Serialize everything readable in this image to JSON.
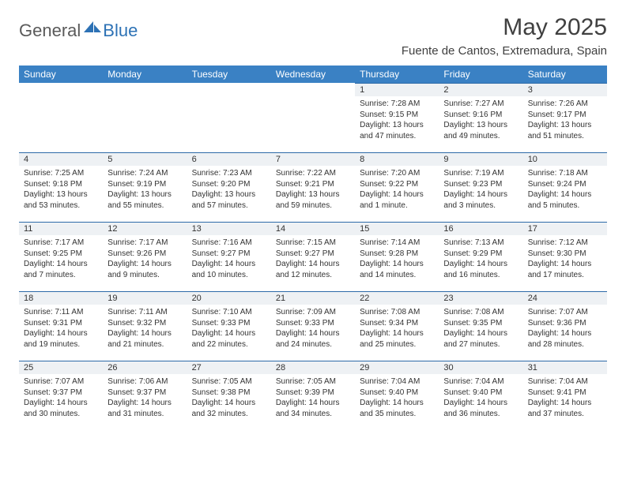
{
  "logo": {
    "general": "General",
    "blue": "Blue"
  },
  "title": "May 2025",
  "location": "Fuente de Cantos, Extremadura, Spain",
  "colors": {
    "header_bg": "#3a81c4",
    "header_text": "#ffffff",
    "daynum_bg": "#eef1f4",
    "weekline": "#2d6aa8",
    "text": "#333333",
    "logo_gray": "#5a5a5a",
    "logo_blue": "#2d72b5",
    "background": "#ffffff"
  },
  "weekdays": [
    "Sunday",
    "Monday",
    "Tuesday",
    "Wednesday",
    "Thursday",
    "Friday",
    "Saturday"
  ],
  "weeks": [
    [
      null,
      null,
      null,
      null,
      {
        "n": "1",
        "sr": "7:28 AM",
        "ss": "9:15 PM",
        "dl": "13 hours and 47 minutes."
      },
      {
        "n": "2",
        "sr": "7:27 AM",
        "ss": "9:16 PM",
        "dl": "13 hours and 49 minutes."
      },
      {
        "n": "3",
        "sr": "7:26 AM",
        "ss": "9:17 PM",
        "dl": "13 hours and 51 minutes."
      }
    ],
    [
      {
        "n": "4",
        "sr": "7:25 AM",
        "ss": "9:18 PM",
        "dl": "13 hours and 53 minutes."
      },
      {
        "n": "5",
        "sr": "7:24 AM",
        "ss": "9:19 PM",
        "dl": "13 hours and 55 minutes."
      },
      {
        "n": "6",
        "sr": "7:23 AM",
        "ss": "9:20 PM",
        "dl": "13 hours and 57 minutes."
      },
      {
        "n": "7",
        "sr": "7:22 AM",
        "ss": "9:21 PM",
        "dl": "13 hours and 59 minutes."
      },
      {
        "n": "8",
        "sr": "7:20 AM",
        "ss": "9:22 PM",
        "dl": "14 hours and 1 minute."
      },
      {
        "n": "9",
        "sr": "7:19 AM",
        "ss": "9:23 PM",
        "dl": "14 hours and 3 minutes."
      },
      {
        "n": "10",
        "sr": "7:18 AM",
        "ss": "9:24 PM",
        "dl": "14 hours and 5 minutes."
      }
    ],
    [
      {
        "n": "11",
        "sr": "7:17 AM",
        "ss": "9:25 PM",
        "dl": "14 hours and 7 minutes."
      },
      {
        "n": "12",
        "sr": "7:17 AM",
        "ss": "9:26 PM",
        "dl": "14 hours and 9 minutes."
      },
      {
        "n": "13",
        "sr": "7:16 AM",
        "ss": "9:27 PM",
        "dl": "14 hours and 10 minutes."
      },
      {
        "n": "14",
        "sr": "7:15 AM",
        "ss": "9:27 PM",
        "dl": "14 hours and 12 minutes."
      },
      {
        "n": "15",
        "sr": "7:14 AM",
        "ss": "9:28 PM",
        "dl": "14 hours and 14 minutes."
      },
      {
        "n": "16",
        "sr": "7:13 AM",
        "ss": "9:29 PM",
        "dl": "14 hours and 16 minutes."
      },
      {
        "n": "17",
        "sr": "7:12 AM",
        "ss": "9:30 PM",
        "dl": "14 hours and 17 minutes."
      }
    ],
    [
      {
        "n": "18",
        "sr": "7:11 AM",
        "ss": "9:31 PM",
        "dl": "14 hours and 19 minutes."
      },
      {
        "n": "19",
        "sr": "7:11 AM",
        "ss": "9:32 PM",
        "dl": "14 hours and 21 minutes."
      },
      {
        "n": "20",
        "sr": "7:10 AM",
        "ss": "9:33 PM",
        "dl": "14 hours and 22 minutes."
      },
      {
        "n": "21",
        "sr": "7:09 AM",
        "ss": "9:33 PM",
        "dl": "14 hours and 24 minutes."
      },
      {
        "n": "22",
        "sr": "7:08 AM",
        "ss": "9:34 PM",
        "dl": "14 hours and 25 minutes."
      },
      {
        "n": "23",
        "sr": "7:08 AM",
        "ss": "9:35 PM",
        "dl": "14 hours and 27 minutes."
      },
      {
        "n": "24",
        "sr": "7:07 AM",
        "ss": "9:36 PM",
        "dl": "14 hours and 28 minutes."
      }
    ],
    [
      {
        "n": "25",
        "sr": "7:07 AM",
        "ss": "9:37 PM",
        "dl": "14 hours and 30 minutes."
      },
      {
        "n": "26",
        "sr": "7:06 AM",
        "ss": "9:37 PM",
        "dl": "14 hours and 31 minutes."
      },
      {
        "n": "27",
        "sr": "7:05 AM",
        "ss": "9:38 PM",
        "dl": "14 hours and 32 minutes."
      },
      {
        "n": "28",
        "sr": "7:05 AM",
        "ss": "9:39 PM",
        "dl": "14 hours and 34 minutes."
      },
      {
        "n": "29",
        "sr": "7:04 AM",
        "ss": "9:40 PM",
        "dl": "14 hours and 35 minutes."
      },
      {
        "n": "30",
        "sr": "7:04 AM",
        "ss": "9:40 PM",
        "dl": "14 hours and 36 minutes."
      },
      {
        "n": "31",
        "sr": "7:04 AM",
        "ss": "9:41 PM",
        "dl": "14 hours and 37 minutes."
      }
    ]
  ],
  "labels": {
    "sunrise": "Sunrise: ",
    "sunset": "Sunset: ",
    "daylight": "Daylight: "
  }
}
